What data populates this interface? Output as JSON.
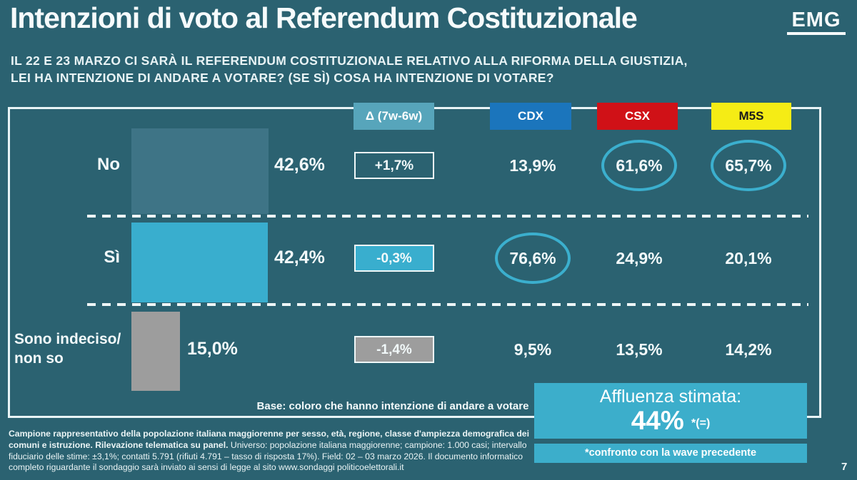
{
  "header": {
    "title": "Intenzioni di voto al Referendum Costituzionale",
    "logo": "EMG",
    "question_line1": "IL 22 E 23 MARZO CI SARÀ IL REFERENDUM COSTITUZIONALE RELATIVO ALLA RIFORMA DELLA GIUSTIZIA,",
    "question_line2": "LEI HA INTENZIONE DI ANDARE A VOTARE? (SE SÌ) COSA HA INTENZIONE DI VOTARE?"
  },
  "columns": {
    "delta": {
      "label": "Δ (7w-6w)",
      "color": "#57A5BB"
    },
    "cdx": {
      "label": "CDX",
      "color": "#1B75BC"
    },
    "csx": {
      "label": "CSX",
      "color": "#D01117"
    },
    "m5s": {
      "label": "M5S",
      "color": "#F5EC15"
    }
  },
  "rows": [
    {
      "label": "No",
      "total": "42,6%",
      "total_pct": 42.6,
      "bar_color": "#3E7486",
      "delta": "+1,7%",
      "delta_bg": "transparent",
      "cdx": "13,9%",
      "cdx_circled": false,
      "csx": "61,6%",
      "csx_circled": true,
      "m5s": "65,7%",
      "m5s_circled": true
    },
    {
      "label": "Sì",
      "total": "42,4%",
      "total_pct": 42.4,
      "bar_color": "#39AECE",
      "delta": "-0,3%",
      "delta_bg": "#39AECE",
      "cdx": "76,6%",
      "cdx_circled": true,
      "csx": "24,9%",
      "csx_circled": false,
      "m5s": "20,1%",
      "m5s_circled": false
    },
    {
      "label": "Sono indeciso/",
      "label_line2": "non so",
      "total": "15,0%",
      "total_pct": 15.0,
      "bar_color": "#9D9D9D",
      "delta": "-1,4%",
      "delta_bg": "#9D9D9D",
      "cdx": "9,5%",
      "cdx_circled": false,
      "csx": "13,5%",
      "csx_circled": false,
      "m5s": "14,2%",
      "m5s_circled": false
    }
  ],
  "base_note": "Base: coloro che hanno intenzione di andare a votare",
  "turnout": {
    "title": "Affluenza stimata:",
    "value": "44%",
    "suffix": "*(=)",
    "note": "*confronto con la wave precedente",
    "box_color": "#3CAECB"
  },
  "footnote": {
    "bold": "Campione rappresentativo della popolazione italiana maggiorenne per sesso, età, regione, classe d'ampiezza demografica dei comuni e istruzione. Rilevazione telematica su panel.",
    "rest": " Universo: popolazione italiana maggiorenne; campione: 1.000 casi; intervallo fiduciario delle stime: ±3,1%; contatti 5.791 (rifiuti 4.791 – tasso di risposta 17%). Field: 02 – 03 marzo 2026. Il documento informatico completo riguardante il sondaggio sarà inviato ai sensi di legge al sito www.sondaggi politicoelettorali.it"
  },
  "page_number": "7",
  "colors": {
    "background": "#2B6271",
    "frame_border": "#E9F4F6",
    "highlight_circle": "#3BAFCE",
    "text": "#F2F9FA"
  },
  "chart_data": {
    "type": "bar",
    "orientation": "horizontal",
    "title": "Intenzioni di voto al Referendum Costituzionale",
    "subtitle": "IL 22 E 23 MARZO CI SARÀ IL REFERENDUM COSTITUZIONALE RELATIVO ALLA RIFORMA DELLA GIUSTIZIA, LEI HA INTENZIONE DI ANDARE A VOTARE? (SE SÌ) COSA HA INTENZIONE DI VOTARE?",
    "categories": [
      "No",
      "Sì",
      "Sono indeciso/non so"
    ],
    "series": [
      {
        "name": "Totale",
        "values": [
          42.6,
          42.4,
          15.0
        ],
        "unit": "%"
      },
      {
        "name": "Δ (7w-6w)",
        "values": [
          1.7,
          -0.3,
          -1.4
        ],
        "unit": "punti"
      },
      {
        "name": "CDX",
        "values": [
          13.9,
          76.6,
          9.5
        ],
        "unit": "%"
      },
      {
        "name": "CSX",
        "values": [
          61.6,
          24.9,
          13.5
        ],
        "unit": "%"
      },
      {
        "name": "M5S",
        "values": [
          65.7,
          20.1,
          14.2
        ],
        "unit": "%"
      }
    ],
    "highlighted_cells": [
      {
        "category": "No",
        "series": "CSX"
      },
      {
        "category": "No",
        "series": "M5S"
      },
      {
        "category": "Sì",
        "series": "CDX"
      }
    ],
    "annotations": [
      "Base: coloro che hanno intenzione di andare a votare",
      "Affluenza stimata: 44% *(=)",
      "*confronto con la wave precedente"
    ],
    "legend_position": "top",
    "grid": false,
    "xlim": [
      0,
      100
    ]
  }
}
